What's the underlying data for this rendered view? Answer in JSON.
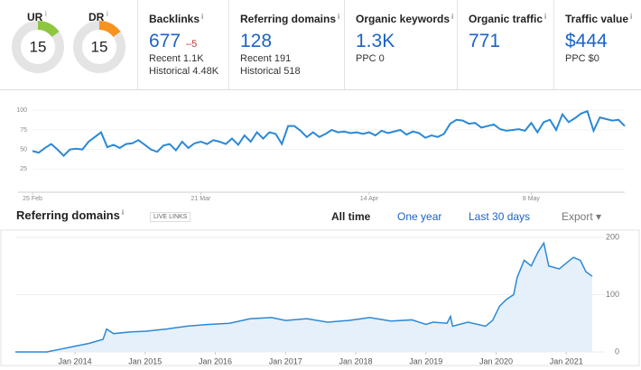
{
  "metrics": {
    "gauges": [
      {
        "label": "UR",
        "value": 15,
        "range": [
          0,
          100
        ],
        "color": "#8dc63f"
      },
      {
        "label": "DR",
        "value": 15,
        "range": [
          0,
          100
        ],
        "color": "#f7941d"
      }
    ],
    "cards": [
      {
        "label": "Backlinks",
        "value": "677",
        "change": "–5",
        "details": [
          "Recent 1.1K",
          "Historical 4.48K"
        ]
      },
      {
        "label": "Referring domains",
        "value": "128",
        "details": [
          "Recent 191",
          "Historical 518"
        ]
      },
      {
        "label": "Organic keywords",
        "value": "1.3K",
        "details": [
          "PPC 0"
        ]
      },
      {
        "label": "Organic traffic",
        "value": "771"
      },
      {
        "label": "Traffic value",
        "value": "$444",
        "details": [
          "PPC $0"
        ]
      }
    ]
  },
  "controls": {
    "badge": "LIVE LINKS",
    "tabs": [
      "All time",
      "One year",
      "Last 30 days"
    ],
    "export": "Export"
  },
  "chart_data": [
    {
      "type": "line",
      "color": "#2b89d6",
      "categories": [
        "25 Feb",
        null,
        null,
        null,
        null,
        null,
        null,
        null,
        null,
        null,
        null,
        null,
        null,
        null,
        null,
        null,
        null,
        null,
        null,
        null,
        null,
        null,
        null,
        null,
        null,
        null,
        null,
        "21 Mar",
        null,
        null,
        null,
        null,
        null,
        null,
        null,
        null,
        null,
        null,
        null,
        null,
        null,
        null,
        null,
        null,
        null,
        null,
        null,
        null,
        null,
        null,
        null,
        null,
        null,
        null,
        "14 Apr",
        null,
        null,
        null,
        null,
        null,
        null,
        null,
        null,
        null,
        null,
        null,
        null,
        null,
        null,
        null,
        null,
        null,
        null,
        null,
        null,
        null,
        null,
        null,
        null,
        null,
        "8 May",
        null,
        null,
        null,
        null,
        null,
        null,
        null,
        null,
        null,
        null,
        null,
        null,
        null,
        null,
        null
      ],
      "values": [
        48,
        46,
        52,
        57,
        50,
        42,
        50,
        51,
        50,
        60,
        66,
        72,
        53,
        56,
        52,
        57,
        58,
        62,
        56,
        50,
        47,
        55,
        57,
        49,
        60,
        52,
        58,
        60,
        57,
        62,
        60,
        57,
        64,
        56,
        68,
        60,
        72,
        64,
        72,
        70,
        57,
        80,
        80,
        74,
        66,
        72,
        66,
        70,
        75,
        72,
        73,
        71,
        72,
        70,
        72,
        68,
        74,
        71,
        73,
        75,
        69,
        73,
        71,
        65,
        68,
        66,
        70,
        83,
        88,
        87,
        83,
        84,
        78,
        80,
        82,
        76,
        74,
        75,
        76,
        74,
        84,
        72,
        85,
        88,
        75,
        95,
        85,
        90,
        96,
        99,
        74,
        91,
        89,
        87,
        88,
        80
      ],
      "ylim": [
        0,
        105
      ],
      "yticks": [
        25,
        50,
        75,
        100
      ]
    },
    {
      "type": "area",
      "title": "Referring domains",
      "color": "#2b89d6",
      "fill": "#e6f0fa",
      "x": [
        2013.15,
        2013.6,
        2013.8,
        2014.0,
        2014.2,
        2014.4,
        2014.45,
        2014.55,
        2014.8,
        2015.0,
        2015.3,
        2015.6,
        2015.9,
        2016.2,
        2016.5,
        2016.8,
        2017.0,
        2017.3,
        2017.6,
        2017.9,
        2018.2,
        2018.5,
        2018.8,
        2019.0,
        2019.1,
        2019.3,
        2019.35,
        2019.38,
        2019.6,
        2019.85,
        2019.95,
        2020.05,
        2020.15,
        2020.25,
        2020.3,
        2020.4,
        2020.5,
        2020.6,
        2020.68,
        2020.75,
        2020.9,
        2021.0,
        2021.1,
        2021.2,
        2021.28,
        2021.37
      ],
      "values": [
        0,
        0,
        5,
        10,
        15,
        22,
        40,
        32,
        35,
        36,
        40,
        45,
        48,
        50,
        58,
        60,
        55,
        58,
        52,
        55,
        60,
        54,
        56,
        48,
        52,
        50,
        62,
        45,
        52,
        45,
        55,
        80,
        92,
        100,
        130,
        160,
        150,
        175,
        190,
        150,
        145,
        155,
        165,
        160,
        140,
        132
      ],
      "xlim": [
        2013.15,
        2021.55
      ],
      "xticks": [
        {
          "value": 2014,
          "label": "Jan 2014"
        },
        {
          "value": 2015,
          "label": "Jan 2015"
        },
        {
          "value": 2016,
          "label": "Jan 2016"
        },
        {
          "value": 2017,
          "label": "Jan 2017"
        },
        {
          "value": 2018,
          "label": "Jan 2018"
        },
        {
          "value": 2019,
          "label": "Jan 2019"
        },
        {
          "value": 2020,
          "label": "Jan 2020"
        },
        {
          "value": 2021,
          "label": "Jan 2021"
        }
      ],
      "ylim": [
        0,
        200
      ],
      "yticks": [
        0,
        100,
        200
      ]
    }
  ]
}
